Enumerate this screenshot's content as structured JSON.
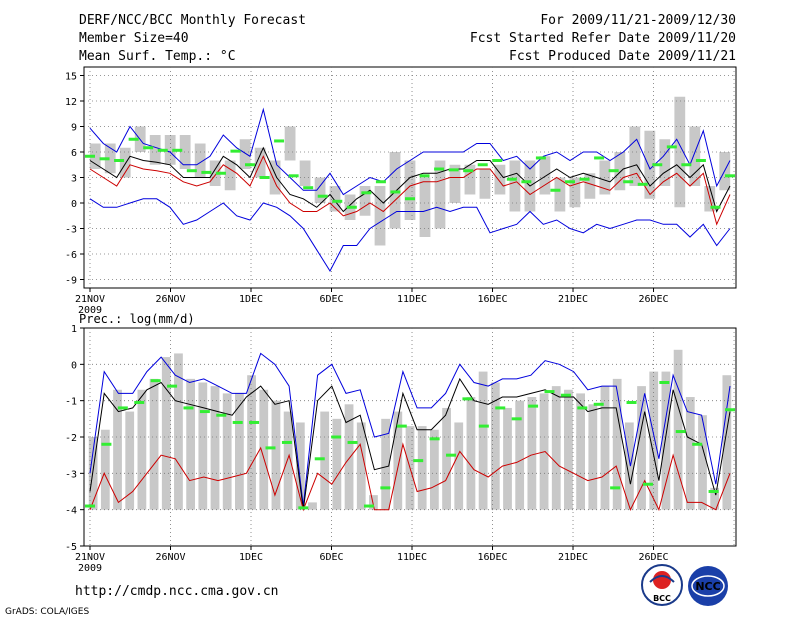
{
  "header": {
    "title": "DERF/NCC/BCC Monthly Forecast",
    "member_size": "Member Size=40",
    "variable": "Mean Surf. Temp.: °C",
    "period": "For 2009/11/21-2009/12/30",
    "start_date": "Fcst Started Refer Date 2009/11/20",
    "produced_date": "Fcst Produced Date 2009/11/21"
  },
  "colors": {
    "gray_bar": "#c8c8c8",
    "obs_mark": "#33ee33",
    "upper_line": "#0000dd",
    "mean_line": "#000000",
    "lower_line": "#cc0000",
    "grid": "#777777"
  },
  "chart_data": [
    {
      "type": "line",
      "title": "Mean Surf. Temp.: °C",
      "x_start_day": 0,
      "x_end_day": 39,
      "ylim": [
        -10,
        16
      ],
      "yticks": [
        -9,
        -6,
        -3,
        0,
        3,
        6,
        9,
        12,
        15
      ],
      "xtick_labels": [
        "21NOV",
        "26NOV",
        "1DEC",
        "6DEC",
        "11DEC",
        "16DEC",
        "21DEC",
        "26DEC"
      ],
      "year_label": "2009",
      "grid": true,
      "bar_range": [
        [
          4,
          7
        ],
        [
          3.5,
          7
        ],
        [
          3,
          6.5
        ],
        [
          6,
          9
        ],
        [
          4.5,
          8
        ],
        [
          4.5,
          8
        ],
        [
          4,
          8
        ],
        [
          3,
          7
        ],
        [
          2,
          5
        ],
        [
          1.5,
          5
        ],
        [
          4,
          7.5
        ],
        [
          3,
          6.5
        ],
        [
          1,
          5
        ],
        [
          5,
          9
        ],
        [
          2,
          5
        ],
        [
          0,
          3
        ],
        [
          -1,
          2
        ],
        [
          -2,
          1
        ],
        [
          -1.5,
          2
        ],
        [
          -5,
          2
        ],
        [
          -3,
          6
        ],
        [
          -2,
          5
        ],
        [
          -4,
          3
        ],
        [
          -3,
          5
        ],
        [
          0,
          4.5
        ],
        [
          1,
          4.5
        ],
        [
          0.5,
          4
        ],
        [
          1,
          4.5
        ],
        [
          -1,
          5
        ],
        [
          -1,
          5
        ],
        [
          1,
          5.5
        ],
        [
          -1,
          3
        ],
        [
          -0.5,
          3
        ],
        [
          0.5,
          3.5
        ],
        [
          1,
          5
        ],
        [
          1.5,
          6
        ],
        [
          2,
          9
        ],
        [
          0.5,
          8.5
        ],
        [
          2,
          7.5
        ],
        [
          -0.5,
          12.5
        ],
        [
          2,
          9
        ],
        [
          -1,
          2
        ],
        [
          1.5,
          6
        ]
      ],
      "series": [
        {
          "name": "ensemble-max",
          "color": "#0000dd",
          "values": [
            8.8,
            7,
            6,
            9,
            7,
            6.5,
            6,
            4.5,
            4.5,
            5.5,
            8,
            6.5,
            5.5,
            11,
            4.5,
            3,
            1.5,
            1.5,
            3.5,
            1,
            2,
            3,
            2.5,
            4,
            5,
            6,
            6,
            6,
            6,
            7,
            7,
            5,
            5.5,
            4,
            5.5,
            6,
            5,
            6,
            6,
            5,
            6,
            7.5,
            4,
            5.5,
            7.5,
            4.5,
            8.5,
            2,
            5
          ]
        },
        {
          "name": "ensemble-mean",
          "color": "#000000",
          "values": [
            5,
            4,
            3,
            5.5,
            5,
            4.8,
            4.5,
            3,
            3,
            3,
            5.5,
            4.5,
            3,
            6.5,
            3,
            1,
            0.5,
            -0.5,
            1,
            -1,
            0.5,
            1.5,
            0,
            1.5,
            3,
            3.5,
            3.5,
            4,
            4,
            5,
            5,
            3,
            3.5,
            2,
            3,
            4,
            3,
            3.5,
            3,
            2.5,
            4,
            4.5,
            2,
            3.5,
            4.5,
            3,
            4.5,
            -1,
            2
          ]
        },
        {
          "name": "ensemble-min",
          "color": "#cc0000",
          "values": [
            4,
            3,
            2,
            4.5,
            4,
            3.8,
            3.5,
            2.5,
            2,
            2.5,
            4.5,
            3.5,
            2,
            5.5,
            2,
            0,
            -1,
            -1,
            0,
            -1.5,
            -1,
            0,
            -1,
            0.5,
            2,
            2.5,
            2.5,
            3,
            3,
            4,
            4,
            2,
            2.5,
            1,
            2,
            3,
            2,
            2.5,
            2,
            1.5,
            3,
            3.5,
            1,
            2.5,
            3.5,
            2,
            3.5,
            -2.5,
            1
          ]
        },
        {
          "name": "ensemble-low",
          "color": "#0000dd",
          "values": [
            0.5,
            -0.5,
            -0.5,
            0,
            0.5,
            0.5,
            -0.5,
            -2.5,
            -2,
            -1,
            0,
            -1.5,
            -2,
            0,
            -0.5,
            -1.5,
            -3,
            -5.5,
            -8,
            -5,
            -5,
            -3,
            -2,
            -1,
            -1,
            -1,
            -0.5,
            -1,
            -0.5,
            -0.5,
            -3.5,
            -3,
            -2.5,
            -1,
            -2.5,
            -2,
            -3,
            -3.5,
            -2.5,
            -3,
            -2.5,
            -2,
            -2,
            -2.5,
            -2.5,
            -4,
            -2.5,
            -5,
            -3
          ]
        },
        {
          "name": "observed",
          "color": "#33ee33",
          "values": [
            5.5,
            5.2,
            5.0,
            7.5,
            6.5,
            6.2,
            6.2,
            3.8,
            3.6,
            3.5,
            6.1,
            4.5,
            3.0,
            7.3,
            3.2,
            1.8,
            0.8,
            0.2,
            -0.5,
            1.2,
            2.5,
            1.3,
            0.5,
            3.2,
            4.0,
            3.9,
            3.8,
            4.5,
            5.0,
            2.8,
            2.5,
            5.3,
            1.5,
            2.5,
            2.8,
            5.3,
            3.8,
            2.5,
            2.2,
            4.5,
            6.6,
            4.5,
            5.0,
            -0.5,
            3.2
          ]
        }
      ]
    },
    {
      "type": "line",
      "title": "Prec.: log(mm/d)",
      "x_start_day": 0,
      "x_end_day": 39,
      "ylim": [
        -5,
        1
      ],
      "yticks": [
        -5,
        -4,
        -3,
        -2,
        -1,
        0,
        1
      ],
      "xtick_labels": [
        "21NOV",
        "26NOV",
        "1DEC",
        "6DEC",
        "11DEC",
        "16DEC",
        "21DEC",
        "26DEC"
      ],
      "year_label": "2009",
      "grid": true,
      "bar_range": [
        [
          -4,
          -2
        ],
        [
          -4,
          -1.8
        ],
        [
          -4,
          -0.7
        ],
        [
          -4,
          -1.3
        ],
        [
          -4,
          -0.7
        ],
        [
          -4,
          -0.4
        ],
        [
          -4,
          0.2
        ],
        [
          -4,
          0.3
        ],
        [
          -4,
          -0.4
        ],
        [
          -4,
          -0.5
        ],
        [
          -4,
          -0.6
        ],
        [
          -4,
          -0.8
        ],
        [
          -4,
          -0.8
        ],
        [
          -4,
          -0.3
        ],
        [
          -4,
          -0.7
        ],
        [
          -4,
          -1
        ],
        [
          -4,
          -1.3
        ],
        [
          -4,
          -1.6
        ],
        [
          -4,
          -3.8
        ],
        [
          -4,
          -1.3
        ],
        [
          -4,
          -1.5
        ],
        [
          -4,
          -1.1
        ],
        [
          -4,
          -1.6
        ],
        [
          -4,
          -3.6
        ],
        [
          -4,
          -1.5
        ],
        [
          -4,
          -1.3
        ],
        [
          -4,
          -1.7
        ],
        [
          -4,
          -1.7
        ],
        [
          -4,
          -1.8
        ],
        [
          -4,
          -1.2
        ],
        [
          -4,
          -1.6
        ],
        [
          -4,
          -0.9
        ],
        [
          -4,
          -0.2
        ],
        [
          -4,
          -0.5
        ],
        [
          -4,
          -1.2
        ],
        [
          -4,
          -1
        ],
        [
          -4,
          -0.9
        ],
        [
          -4,
          -0.8
        ],
        [
          -4,
          -0.6
        ],
        [
          -4,
          -0.7
        ],
        [
          -4,
          -0.8
        ],
        [
          -4,
          -1.1
        ],
        [
          -4,
          -0.6
        ],
        [
          -4,
          -0.4
        ],
        [
          -4,
          -1.6
        ],
        [
          -4,
          -0.6
        ],
        [
          -4,
          -0.2
        ],
        [
          -4,
          -0.2
        ],
        [
          -4,
          0.4
        ],
        [
          -4,
          -0.9
        ],
        [
          -4,
          -1.4
        ],
        [
          -4,
          -3.4
        ],
        [
          -4,
          -0.3
        ]
      ],
      "series": [
        {
          "name": "ensemble-max",
          "color": "#0000dd",
          "values": [
            -3,
            -0.2,
            -0.8,
            -0.8,
            -0.2,
            0.2,
            -0.3,
            -0.5,
            -0.4,
            -0.6,
            -0.8,
            -0.8,
            0.3,
            0,
            -0.6,
            -3.9,
            -0.3,
            0,
            -0.8,
            -0.7,
            -2,
            -1.9,
            -0.2,
            -1.2,
            -1.2,
            -0.8,
            0,
            -0.5,
            -0.6,
            -0.4,
            -0.4,
            -0.3,
            0.1,
            0,
            -0.2,
            -0.7,
            -0.6,
            -0.6,
            -2.8,
            -0.8,
            -2.6,
            -0.3,
            -1.3,
            -1.4,
            -3.3,
            -0.6
          ]
        },
        {
          "name": "ensemble-mean",
          "color": "#000000",
          "values": [
            -3.5,
            -0.8,
            -1.3,
            -1.2,
            -0.7,
            -0.5,
            -1,
            -1.1,
            -1.2,
            -1.3,
            -1.4,
            -0.9,
            -0.6,
            -1.1,
            -1,
            -4,
            -1,
            -0.6,
            -1.6,
            -1.4,
            -2.9,
            -2.8,
            -0.8,
            -1.8,
            -1.8,
            -1.4,
            -0.4,
            -1,
            -1.1,
            -0.9,
            -0.9,
            -0.8,
            -0.7,
            -0.9,
            -0.9,
            -1.3,
            -1.2,
            -1.2,
            -3.3,
            -1.3,
            -3.2,
            -0.7,
            -2,
            -2.2,
            -3.6,
            -1.3
          ]
        },
        {
          "name": "ensemble-min",
          "color": "#cc0000",
          "values": [
            -4,
            -3,
            -3.8,
            -3.5,
            -3,
            -2.5,
            -2.6,
            -3.2,
            -3.1,
            -3.2,
            -3.1,
            -3,
            -2.3,
            -3.6,
            -2.5,
            -4,
            -3,
            -3.3,
            -2.7,
            -2.2,
            -4,
            -4,
            -2.2,
            -3.5,
            -3.4,
            -3.2,
            -2.4,
            -2.9,
            -3.1,
            -2.8,
            -2.7,
            -2.5,
            -2.4,
            -2.8,
            -3,
            -3.2,
            -3.1,
            -2.8,
            -4,
            -3.2,
            -4,
            -2.5,
            -3.8,
            -3.8,
            -4,
            -3
          ]
        },
        {
          "name": "observed",
          "color": "#33ee33",
          "values": [
            -3.9,
            -2.2,
            -1.2,
            -1.05,
            -0.45,
            -0.6,
            -1.2,
            -1.3,
            -1.4,
            -1.6,
            -1.6,
            -2.3,
            -2.15,
            -3.95,
            -2.6,
            -2.0,
            -2.15,
            -3.9,
            -3.4,
            -1.7,
            -2.65,
            -2.05,
            -2.5,
            -0.95,
            -1.7,
            -1.2,
            -1.5,
            -1.15,
            -0.75,
            -0.85,
            -1.2,
            -1.1,
            -3.4,
            -1.05,
            -3.3,
            -0.5,
            -1.85,
            -2.2,
            -3.5,
            -1.25
          ]
        }
      ]
    }
  ],
  "footer": {
    "url": "http://cmdp.ncc.cma.gov.cn",
    "credit": "GrADS: COLA/IGES",
    "logo_bcc": "BCC",
    "logo_ncc": "NCC"
  }
}
